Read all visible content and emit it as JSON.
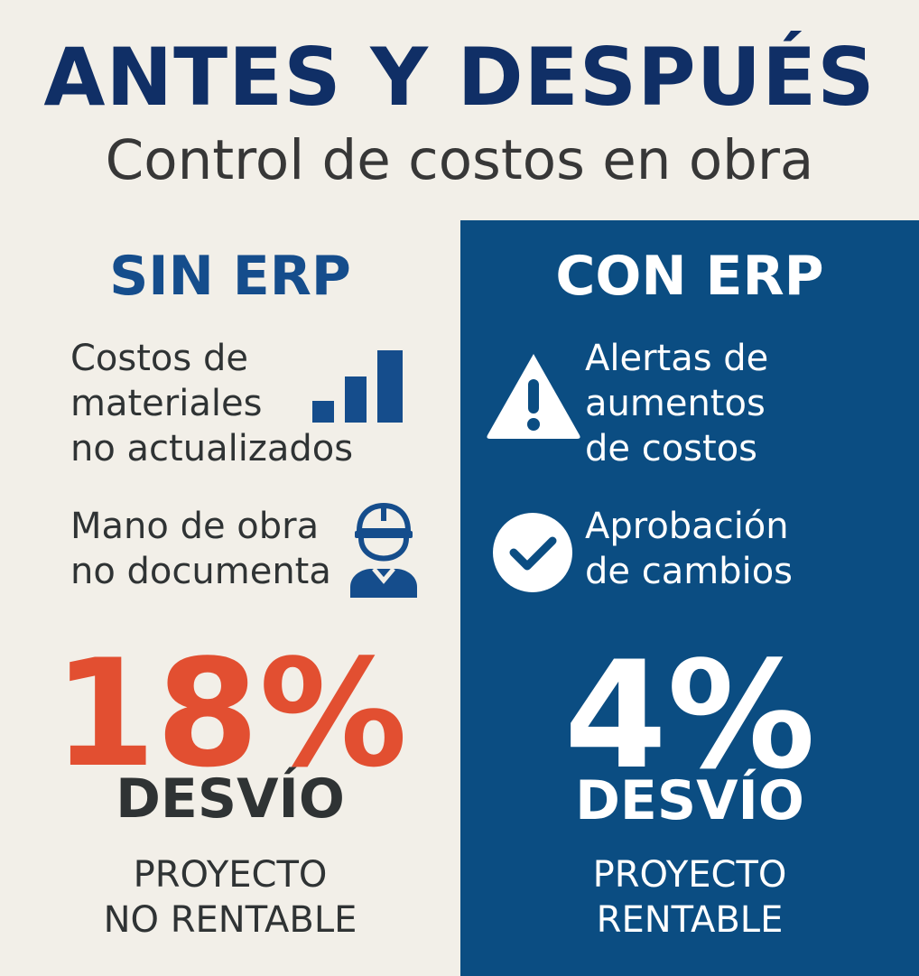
{
  "header": {
    "title": "ANTES Y DESPUÉS",
    "subtitle": "Control de costos en obra"
  },
  "left": {
    "title": "SIN ERP",
    "items": [
      {
        "text": "Costos de\nmateriales\nno actualizados",
        "icon": "bar-chart-icon"
      },
      {
        "text": "Mano de obra\nno documenta",
        "icon": "construction-worker-icon"
      }
    ],
    "big_number": "18%",
    "desvio": "DESVÍO",
    "status": "PROYECTO\nNO RENTABLE"
  },
  "right": {
    "title": "CON ERP",
    "items": [
      {
        "text": "Alertas de\naumentos\nde costos",
        "icon": "warning-icon"
      },
      {
        "text": "Aprobación\nde cambios",
        "icon": "check-circle-icon"
      }
    ],
    "big_number": "4%",
    "desvio": "DESVÍO",
    "status": "PROYECTO\nRENTABLE"
  },
  "colors": {
    "title_navy": "#102f66",
    "left_accent_blue": "#154d8c",
    "left_number_red": "#e24f31",
    "right_panel_blue": "#0b4d82",
    "background_cream": "#f2efe8",
    "text_dark": "#2f3334",
    "white": "#ffffff"
  }
}
